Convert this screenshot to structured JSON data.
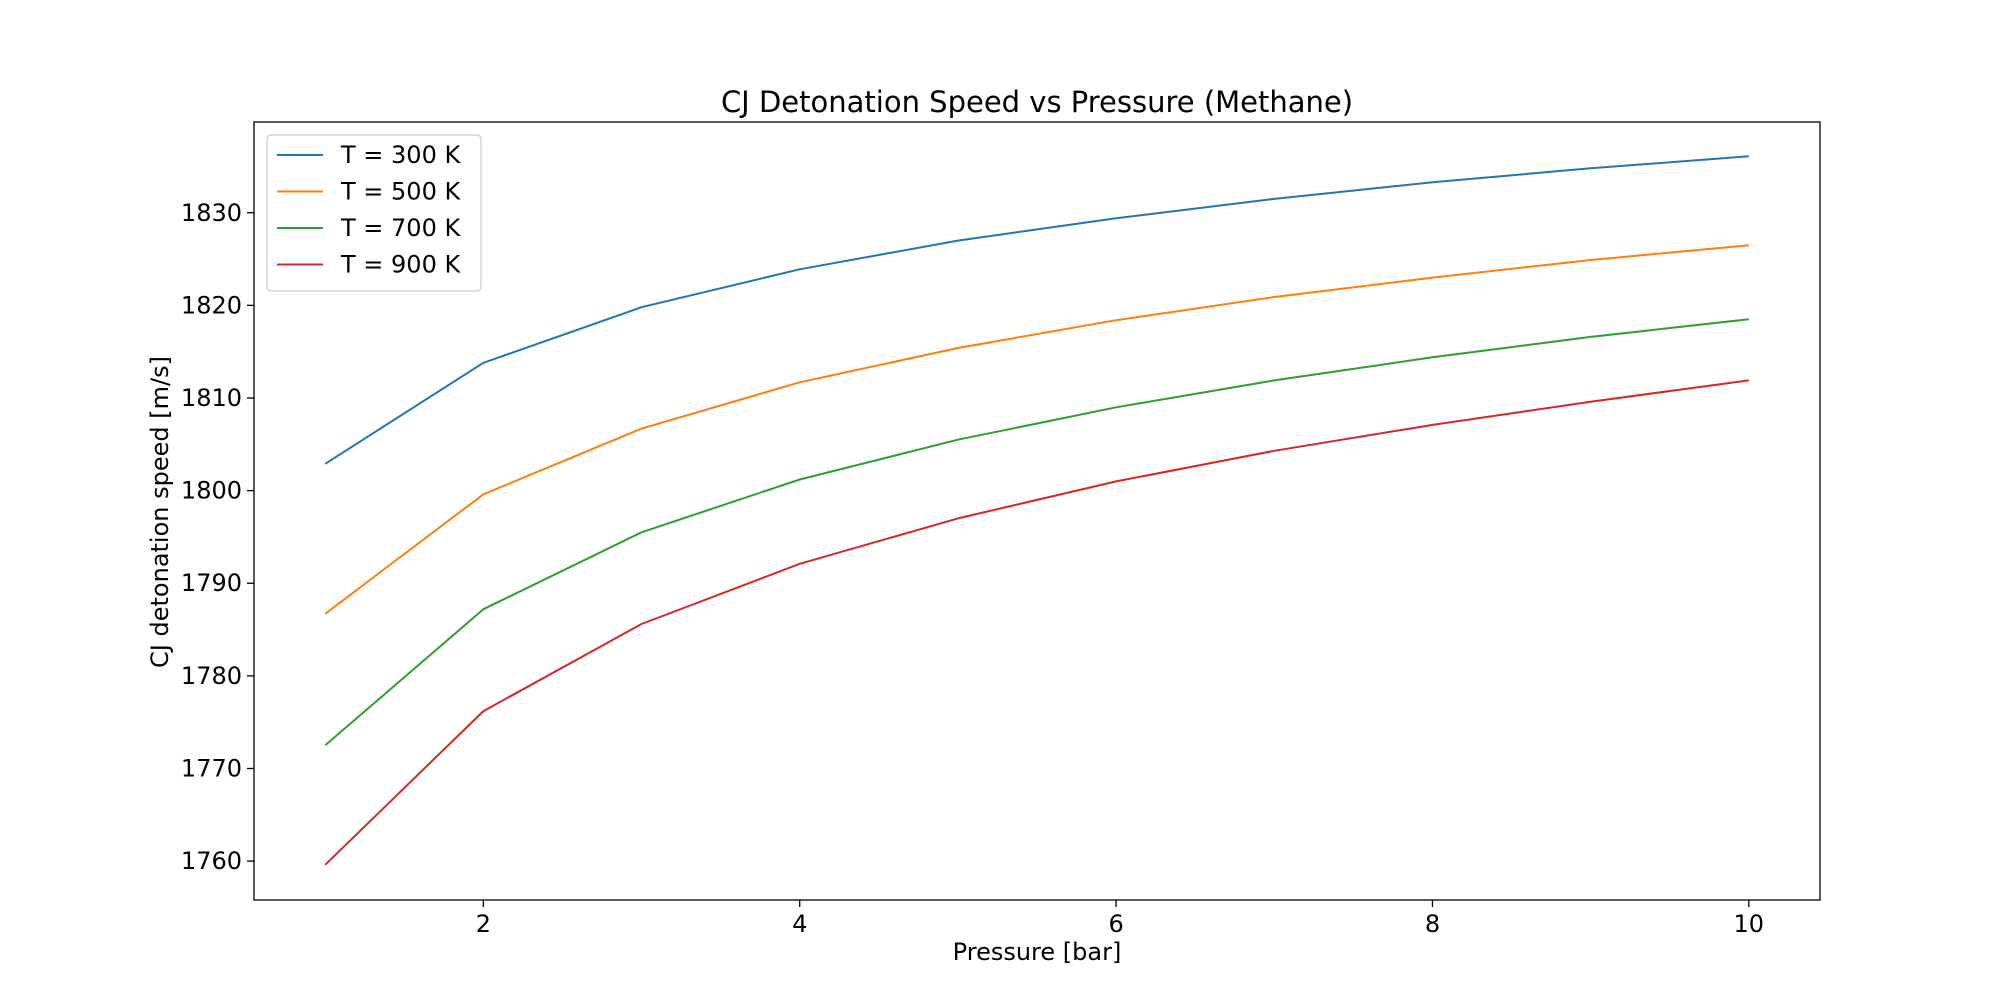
{
  "chart_data": {
    "type": "line",
    "title": "CJ Detonation Speed vs Pressure (Methane)",
    "xlabel": "Pressure [bar]",
    "ylabel": "CJ detonation speed [m/s]",
    "x": [
      1,
      2,
      3,
      4,
      5,
      6,
      7,
      8,
      9,
      10
    ],
    "xlim": [
      0.55,
      10.45
    ],
    "ylim": [
      1755.8,
      1839.8
    ],
    "xticks": [
      2,
      4,
      6,
      8,
      10
    ],
    "yticks": [
      1760,
      1770,
      1780,
      1790,
      1800,
      1810,
      1820,
      1830
    ],
    "grid": false,
    "legend_position": "upper left",
    "series": [
      {
        "name": "T = 300 K",
        "color": "#1f77b4",
        "values": [
          1802.9,
          1813.8,
          1819.8,
          1823.9,
          1827.0,
          1829.4,
          1831.5,
          1833.3,
          1834.8,
          1836.1
        ]
      },
      {
        "name": "T = 500 K",
        "color": "#ff7f0e",
        "values": [
          1786.7,
          1799.6,
          1806.7,
          1811.7,
          1815.4,
          1818.4,
          1820.9,
          1823.0,
          1824.9,
          1826.5
        ]
      },
      {
        "name": "T = 700 K",
        "color": "#2ca02c",
        "values": [
          1772.5,
          1787.2,
          1795.5,
          1801.2,
          1805.5,
          1809.0,
          1811.9,
          1814.4,
          1816.6,
          1818.5
        ]
      },
      {
        "name": "T = 900 K",
        "color": "#d62728",
        "values": [
          1759.6,
          1776.2,
          1785.6,
          1792.1,
          1797.0,
          1801.0,
          1804.3,
          1807.1,
          1809.6,
          1811.9
        ]
      }
    ]
  }
}
